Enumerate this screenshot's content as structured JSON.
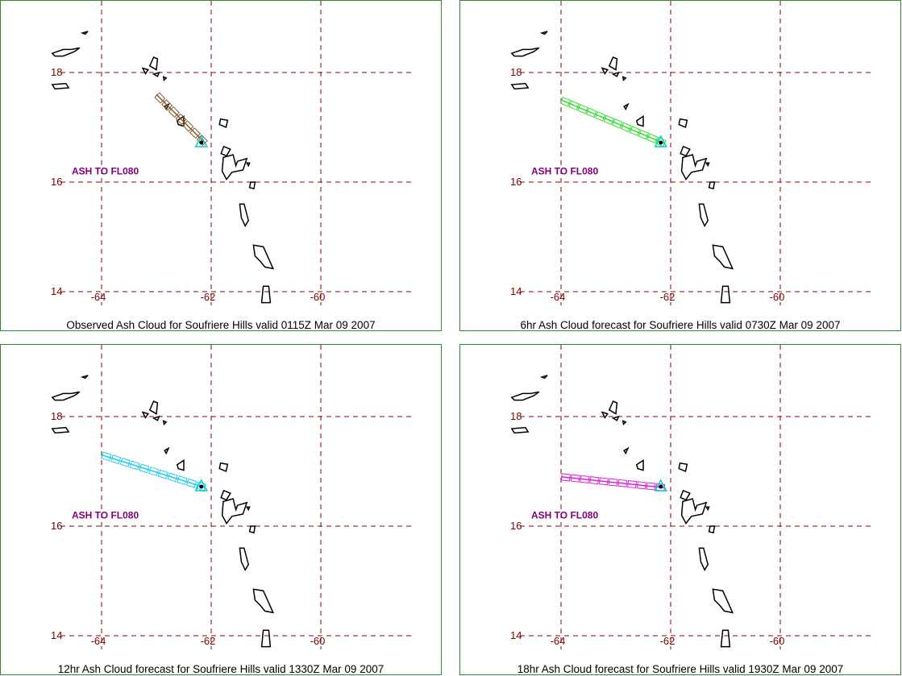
{
  "colors": {
    "grid": "#8b0000",
    "axis_label": "#800000",
    "coast": "#000000",
    "ash_label": "#800080",
    "volcano": "#00ced1",
    "border": "#2e8b2e"
  },
  "panels": [
    {
      "caption": "Observed Ash Cloud for Soufriere  Hills valid 0115Z Mar 09 2007",
      "ash_label": "ASH TO FL080",
      "ash_color": "#8b5a2b",
      "ash_line": [
        [
          -63.0,
          17.6
        ],
        [
          -62.1,
          16.7
        ]
      ],
      "lon_ticks": [
        "-64",
        "-62",
        "-60"
      ],
      "lat_ticks": [
        "18",
        "16",
        "14"
      ]
    },
    {
      "caption": "6hr Ash Cloud forecast for Soufriere  Hills valid 0730Z Mar 09 2007",
      "ash_label": "ASH TO FL080",
      "ash_color": "#33dd33",
      "ash_line": [
        [
          -64.0,
          17.5
        ],
        [
          -62.1,
          16.7
        ]
      ],
      "lon_ticks": [
        "-64",
        "-62",
        "-60"
      ],
      "lat_ticks": [
        "18",
        "16",
        "14"
      ]
    },
    {
      "caption": "12hr Ash Cloud forecast for Soufriere  Hills valid 1330Z Mar 09 2007",
      "ash_label": "ASH TO FL080",
      "ash_color": "#22ccee",
      "ash_line": [
        [
          -64.0,
          17.3
        ],
        [
          -62.1,
          16.7
        ]
      ],
      "lon_ticks": [
        "-64",
        "-62",
        "-60"
      ],
      "lat_ticks": [
        "18",
        "16",
        "14"
      ]
    },
    {
      "caption": "18hr Ash Cloud forecast for Soufriere  Hills valid 1930Z Mar 09 2007",
      "ash_label": "ASH TO FL080",
      "ash_color": "#dd22dd",
      "ash_line": [
        [
          -64.0,
          16.9
        ],
        [
          -62.1,
          16.7
        ]
      ],
      "lon_ticks": [
        "-64",
        "-62",
        "-60"
      ],
      "lat_ticks": [
        "18",
        "16",
        "14"
      ]
    }
  ]
}
